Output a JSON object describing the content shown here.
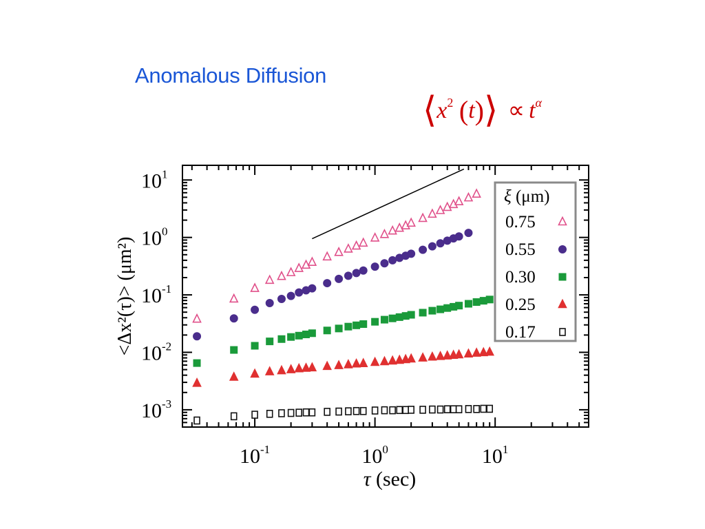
{
  "slide": {
    "title": "Anomalous Diffusion",
    "formula": {
      "lang": "⟨",
      "x": "x",
      "exp2": "2",
      "lpar": "(",
      "t": "t",
      "rpar": ")",
      "rang": "⟩",
      "propto": "∝",
      "t2": "t",
      "alpha": "α"
    }
  },
  "colors": {
    "title": "#1a56d6",
    "formula": "#cc0000",
    "series_075": "#e0508a",
    "series_055": "#4a2d8c",
    "series_030": "#1a9a3a",
    "series_025": "#e03030",
    "series_017": "#111111"
  },
  "chart_data": {
    "type": "scatter",
    "xscale": "log",
    "yscale": "log",
    "xlim": [
      0.025,
      60
    ],
    "ylim": [
      0.0005,
      18
    ],
    "xlabel": {
      "base": "τ",
      "rest": " (sec)"
    },
    "ylabel": "<Δx²(τ)> (μm²)",
    "x_tick_labels": [
      {
        "value": 0.1,
        "base": "10",
        "exp": "-1"
      },
      {
        "value": 1,
        "base": "10",
        "exp": "0"
      },
      {
        "value": 10,
        "base": "10",
        "exp": "1"
      }
    ],
    "y_tick_labels": [
      {
        "value": 10,
        "base": "10",
        "exp": "1"
      },
      {
        "value": 1,
        "base": "10",
        "exp": "0"
      },
      {
        "value": 0.1,
        "base": "10",
        "exp": "-1"
      },
      {
        "value": 0.01,
        "base": "10",
        "exp": "-2"
      },
      {
        "value": 0.001,
        "base": "10",
        "exp": "-3"
      }
    ],
    "legend": {
      "position": "top-right",
      "title_symbol": "ξ",
      "title_unit": " (μm)"
    },
    "reference_line": {
      "x": [
        0.3,
        5.5
      ],
      "y": [
        0.95,
        15.5
      ]
    },
    "series": [
      {
        "name": "0.75",
        "marker": "triangle-open",
        "color": "#e0508a",
        "x": [
          0.033,
          0.067,
          0.1,
          0.133,
          0.167,
          0.2,
          0.233,
          0.267,
          0.3,
          0.4,
          0.5,
          0.6,
          0.7,
          0.8,
          1.0,
          1.2,
          1.4,
          1.6,
          1.8,
          2.0,
          2.5,
          3.0,
          3.5,
          4.0,
          4.5,
          5.0,
          6.0,
          7.0
        ],
        "y": [
          0.038,
          0.085,
          0.13,
          0.18,
          0.21,
          0.245,
          0.29,
          0.33,
          0.37,
          0.46,
          0.55,
          0.63,
          0.71,
          0.8,
          0.98,
          1.13,
          1.3,
          1.45,
          1.6,
          1.78,
          2.15,
          2.55,
          2.95,
          3.35,
          3.75,
          4.2,
          4.9,
          5.7
        ]
      },
      {
        "name": "0.55",
        "marker": "circle-filled",
        "color": "#4a2d8c",
        "x": [
          0.033,
          0.067,
          0.1,
          0.133,
          0.167,
          0.2,
          0.233,
          0.267,
          0.3,
          0.4,
          0.5,
          0.6,
          0.7,
          0.8,
          1.0,
          1.2,
          1.4,
          1.6,
          1.8,
          2.0,
          2.5,
          3.0,
          3.5,
          4.0,
          4.5,
          5.0,
          6.0
        ],
        "y": [
          0.019,
          0.039,
          0.055,
          0.072,
          0.085,
          0.096,
          0.11,
          0.12,
          0.13,
          0.16,
          0.19,
          0.215,
          0.24,
          0.265,
          0.31,
          0.355,
          0.4,
          0.44,
          0.48,
          0.52,
          0.61,
          0.7,
          0.79,
          0.88,
          0.96,
          1.04,
          1.2
        ]
      },
      {
        "name": "0.30",
        "marker": "square-filled",
        "color": "#1a9a3a",
        "x": [
          0.033,
          0.067,
          0.1,
          0.133,
          0.167,
          0.2,
          0.233,
          0.267,
          0.3,
          0.4,
          0.5,
          0.6,
          0.7,
          0.8,
          1.0,
          1.2,
          1.4,
          1.6,
          1.8,
          2.0,
          2.5,
          3.0,
          3.5,
          4.0,
          4.5,
          5.0,
          6.0,
          7.0,
          8.0,
          9.0
        ],
        "y": [
          0.0065,
          0.011,
          0.013,
          0.0155,
          0.017,
          0.0185,
          0.0195,
          0.0205,
          0.0215,
          0.024,
          0.026,
          0.028,
          0.0295,
          0.031,
          0.034,
          0.037,
          0.039,
          0.041,
          0.043,
          0.045,
          0.049,
          0.053,
          0.056,
          0.059,
          0.062,
          0.065,
          0.07,
          0.075,
          0.079,
          0.083
        ]
      },
      {
        "name": "0.25",
        "marker": "triangle-filled",
        "color": "#e03030",
        "x": [
          0.033,
          0.067,
          0.1,
          0.133,
          0.167,
          0.2,
          0.233,
          0.267,
          0.3,
          0.4,
          0.5,
          0.6,
          0.7,
          0.8,
          1.0,
          1.2,
          1.4,
          1.6,
          1.8,
          2.0,
          2.5,
          3.0,
          3.5,
          4.0,
          4.5,
          5.0,
          6.0,
          7.0,
          8.0,
          9.0
        ],
        "y": [
          0.0029,
          0.0037,
          0.0042,
          0.0046,
          0.0048,
          0.005,
          0.0052,
          0.0053,
          0.0054,
          0.0057,
          0.0059,
          0.0061,
          0.0063,
          0.0064,
          0.0067,
          0.0069,
          0.0071,
          0.0073,
          0.0075,
          0.0077,
          0.008,
          0.0083,
          0.0085,
          0.0087,
          0.0089,
          0.0091,
          0.0094,
          0.0097,
          0.0099,
          0.0101
        ]
      },
      {
        "name": "0.17",
        "marker": "square-open",
        "color": "#111111",
        "x": [
          0.033,
          0.067,
          0.1,
          0.133,
          0.167,
          0.2,
          0.233,
          0.267,
          0.3,
          0.4,
          0.5,
          0.6,
          0.7,
          0.8,
          1.0,
          1.2,
          1.4,
          1.6,
          1.8,
          2.0,
          2.5,
          3.0,
          3.5,
          4.0,
          4.5,
          5.0,
          6.0,
          7.0,
          8.0,
          9.0
        ],
        "y": [
          0.00065,
          0.00077,
          0.00082,
          0.00085,
          0.00087,
          0.00088,
          0.00089,
          0.0009,
          0.0009,
          0.00092,
          0.00093,
          0.00094,
          0.00095,
          0.00095,
          0.00097,
          0.00098,
          0.00098,
          0.00099,
          0.00099,
          0.001,
          0.001,
          0.00101,
          0.00101,
          0.00102,
          0.00102,
          0.00102,
          0.00103,
          0.00103,
          0.00104,
          0.00104
        ]
      }
    ]
  }
}
